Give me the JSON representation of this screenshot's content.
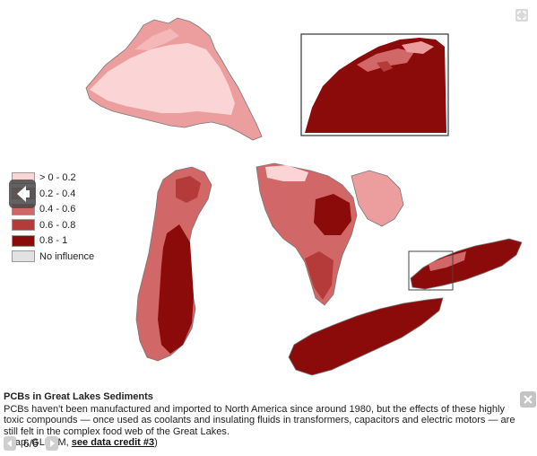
{
  "legend": {
    "items": [
      {
        "label": "> 0 - 0.2",
        "color": "#fbd5d5"
      },
      {
        "label": "0.2 - 0.4",
        "color": "#ec9e9e"
      },
      {
        "label": "0.4 - 0.6",
        "color": "#d26767"
      },
      {
        "label": "0.6 - 0.8",
        "color": "#b53b3b"
      },
      {
        "label": "0.8 - 1",
        "color": "#8b0b0b"
      },
      {
        "label": "No influence",
        "color": "#e2e2e2"
      }
    ]
  },
  "caption": {
    "title": "PCBs in Great Lakes Sediments",
    "body": "PCBs haven't been manufactured and imported to North America since around 1980, but the effects of these highly toxic compounds — once used as coolants and insulating fluids in transformers, capacitors and electric motors — are still felt in the complex food web of the Great Lakes.",
    "credit_prefix": "(Map: GLEAM, ",
    "credit_link": "see data credit #3",
    "credit_suffix": ")"
  },
  "pager": {
    "count": "6/6"
  },
  "icons": {
    "expand": "expand-icon",
    "prev_slide": "arrow-left-icon",
    "close": "close-icon",
    "pager_prev": "arrow-left-icon",
    "pager_next": "arrow-right-icon"
  }
}
